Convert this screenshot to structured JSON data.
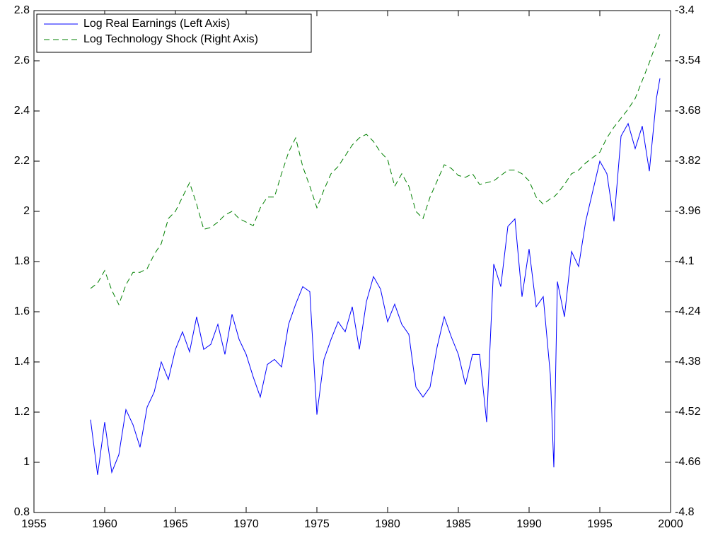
{
  "chart_data": {
    "type": "line",
    "x": [
      1959,
      1959.5,
      1960,
      1960.5,
      1961,
      1961.5,
      1962,
      1962.5,
      1963,
      1963.5,
      1964,
      1964.5,
      1965,
      1965.5,
      1966,
      1966.5,
      1967,
      1967.5,
      1968,
      1968.5,
      1969,
      1969.5,
      1970,
      1970.5,
      1971,
      1971.5,
      1972,
      1972.5,
      1973,
      1973.5,
      1974,
      1974.5,
      1975,
      1975.5,
      1976,
      1976.5,
      1977,
      1977.5,
      1978,
      1978.5,
      1979,
      1979.5,
      1980,
      1980.5,
      1981,
      1981.5,
      1982,
      1982.5,
      1983,
      1983.5,
      1984,
      1984.5,
      1985,
      1985.5,
      1986,
      1986.5,
      1987,
      1987.5,
      1988,
      1988.5,
      1989,
      1989.5,
      1990,
      1990.5,
      1991,
      1991.5,
      1991.75,
      1992,
      1992.5,
      1993,
      1993.5,
      1994,
      1994.5,
      1995,
      1995.5,
      1996,
      1996.5,
      1997,
      1997.5,
      1998,
      1998.5,
      1999,
      1999.25
    ],
    "series": [
      {
        "name": "Log Real Earnings (Left Axis)",
        "color": "#0000ff",
        "dashed": false,
        "values": [
          1.17,
          0.95,
          1.16,
          0.96,
          1.03,
          1.21,
          1.15,
          1.06,
          1.22,
          1.28,
          1.4,
          1.33,
          1.45,
          1.52,
          1.44,
          1.58,
          1.45,
          1.47,
          1.55,
          1.43,
          1.59,
          1.49,
          1.43,
          1.34,
          1.26,
          1.39,
          1.41,
          1.38,
          1.55,
          1.63,
          1.7,
          1.68,
          1.19,
          1.41,
          1.49,
          1.56,
          1.52,
          1.62,
          1.45,
          1.64,
          1.74,
          1.69,
          1.56,
          1.63,
          1.55,
          1.51,
          1.3,
          1.26,
          1.3,
          1.46,
          1.58,
          1.5,
          1.43,
          1.31,
          1.43,
          1.43,
          1.16,
          1.79,
          1.7,
          1.94,
          1.97,
          1.66,
          1.85,
          1.62,
          1.66,
          1.35,
          0.98,
          1.72,
          1.58,
          1.84,
          1.78,
          1.96,
          2.08,
          2.2,
          2.15,
          1.96,
          2.3,
          2.35,
          2.25,
          2.34,
          2.16,
          2.45,
          2.53
        ]
      },
      {
        "name": "Log Technology Shock (Right Axis)",
        "color": "#008000",
        "dashed": true,
        "axis": "y2",
        "values": [
          -4.175,
          -4.16,
          -4.125,
          -4.18,
          -4.22,
          -4.165,
          -4.13,
          -4.13,
          -4.12,
          -4.08,
          -4.05,
          -3.98,
          -3.96,
          -3.92,
          -3.88,
          -3.94,
          -4.01,
          -4.005,
          -3.99,
          -3.97,
          -3.96,
          -3.98,
          -3.99,
          -4.0,
          -3.95,
          -3.92,
          -3.92,
          -3.855,
          -3.795,
          -3.755,
          -3.835,
          -3.89,
          -3.95,
          -3.9,
          -3.855,
          -3.835,
          -3.805,
          -3.775,
          -3.755,
          -3.745,
          -3.765,
          -3.795,
          -3.815,
          -3.89,
          -3.855,
          -3.89,
          -3.96,
          -3.98,
          -3.92,
          -3.875,
          -3.83,
          -3.84,
          -3.86,
          -3.865,
          -3.855,
          -3.885,
          -3.88,
          -3.875,
          -3.86,
          -3.845,
          -3.845,
          -3.855,
          -3.875,
          -3.92,
          -3.94,
          -3.925,
          -3.92,
          -3.91,
          -3.885,
          -3.855,
          -3.845,
          -3.825,
          -3.81,
          -3.795,
          -3.755,
          -3.725,
          -3.7,
          -3.675,
          -3.645,
          -3.595,
          -3.545,
          -3.49,
          -3.465
        ]
      }
    ],
    "xlim": [
      1955,
      2000
    ],
    "xticks": [
      1955,
      1960,
      1965,
      1970,
      1975,
      1980,
      1985,
      1990,
      1995,
      2000
    ],
    "ylim": [
      0.8,
      2.8
    ],
    "yticks": [
      0.8,
      1,
      1.2,
      1.4,
      1.6,
      1.8,
      2,
      2.2,
      2.4,
      2.6,
      2.8
    ],
    "y2lim": [
      -4.8,
      -3.4
    ],
    "y2ticks": [
      -4.8,
      -4.66,
      -4.52,
      -4.38,
      -4.24,
      -4.1,
      -3.96,
      -3.82,
      -3.68,
      -3.54,
      -3.4
    ],
    "legend": "upper left"
  }
}
